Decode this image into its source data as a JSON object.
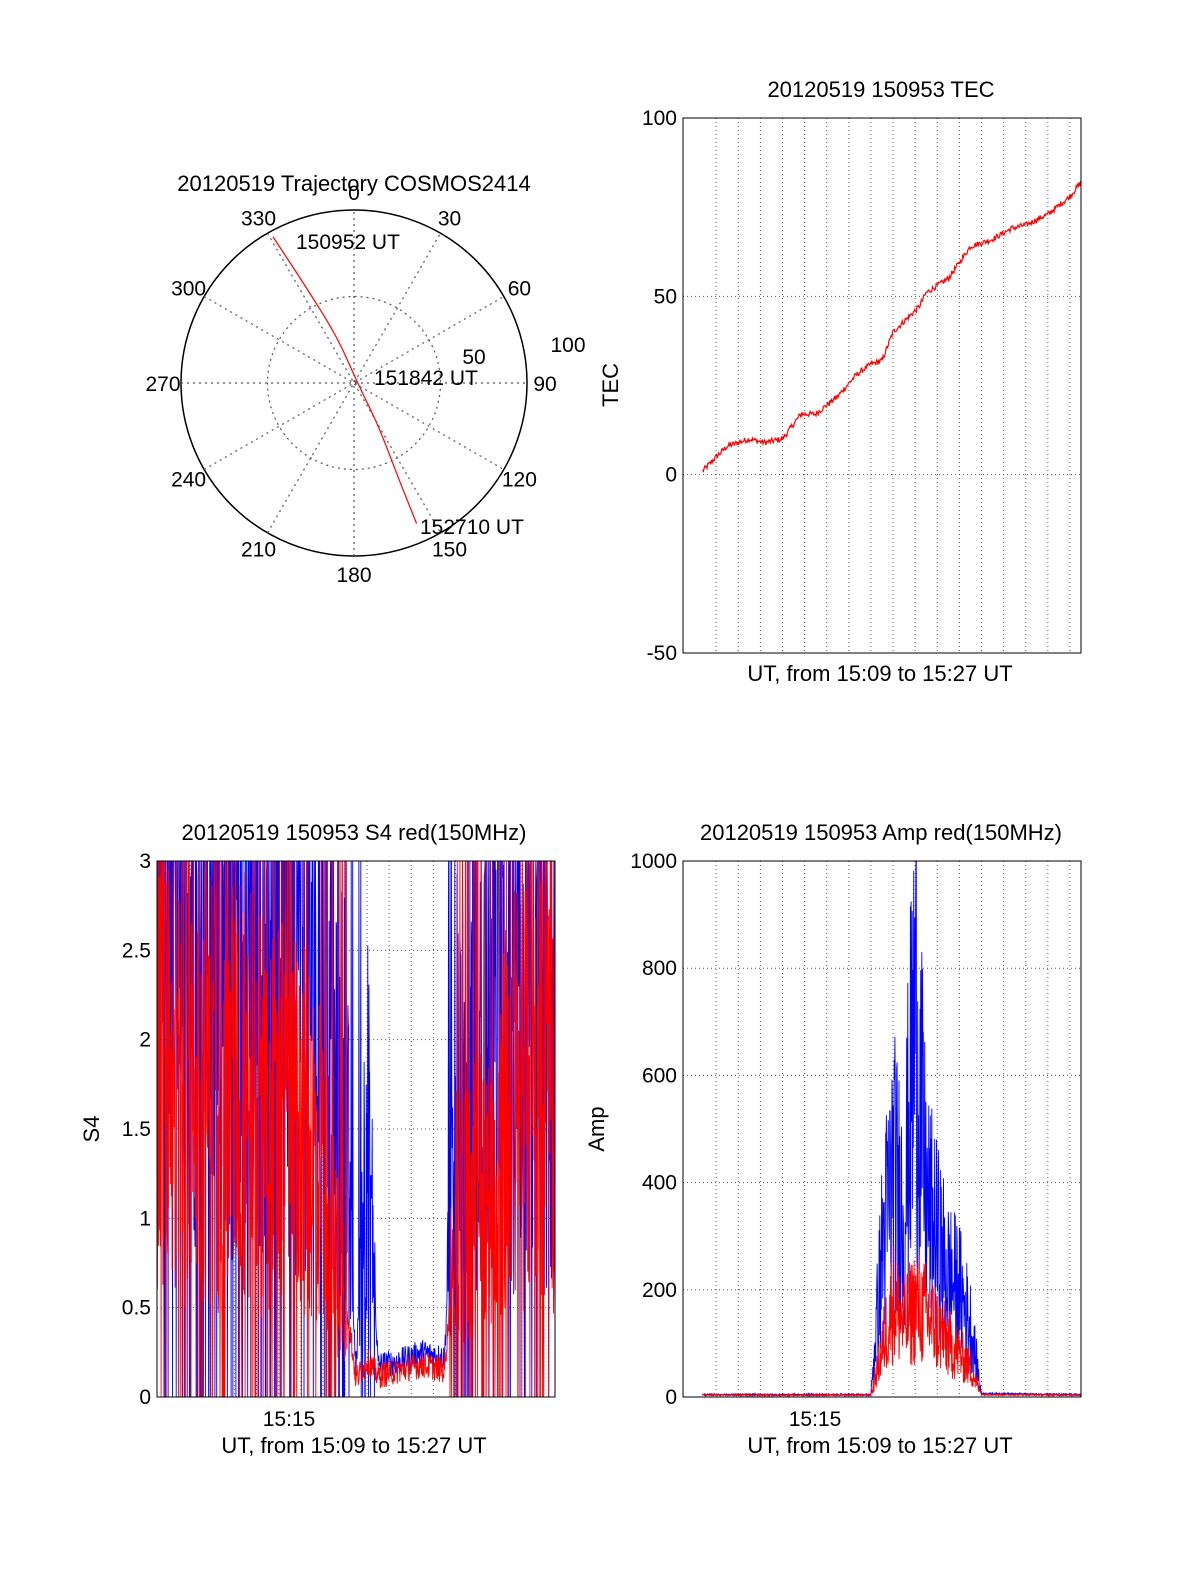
{
  "colors": {
    "red": "#ff0000",
    "blue": "#0000ff",
    "axis": "#000000",
    "grid": "#555555"
  },
  "chart_data": [
    {
      "id": "trajectory",
      "type": "polar",
      "title": "20120519 Trajectory COSMOS2414",
      "azimuth_labels": [
        "0",
        "30",
        "60",
        "90",
        "120",
        "150",
        "180",
        "210",
        "240",
        "270",
        "300",
        "330"
      ],
      "radial_labels": [
        "50",
        "100"
      ],
      "track": [
        {
          "az": 331,
          "el": 3
        },
        {
          "az": 333,
          "el": 30
        },
        {
          "az": 340,
          "el": 64
        },
        {
          "az": 100,
          "el": 88
        },
        {
          "az": 150,
          "el": 65
        },
        {
          "az": 155,
          "el": 35
        },
        {
          "az": 156,
          "el": 10
        }
      ],
      "annotations": [
        "150952 UT",
        "151842 UT",
        "152710 UT"
      ]
    },
    {
      "id": "tec",
      "type": "line",
      "title": "20120519 150953 TEC",
      "xlabel": "UT, from 15:09 to 15:27 UT",
      "ylabel": "TEC",
      "xlim": [
        "15:09",
        "15:27"
      ],
      "ylim": [
        -50,
        100
      ],
      "yticks": [
        "-50",
        "0",
        "50",
        "100"
      ],
      "grid": true,
      "series": [
        {
          "x": [
            "15:09:53",
            "15:10:30",
            "15:11:00",
            "15:12:00",
            "15:12:40",
            "15:13:30",
            "15:14:20",
            "15:15:00",
            "15:16:00",
            "15:16:50",
            "15:17:30",
            "15:18:00",
            "15:18:30",
            "15:19:00",
            "15:19:40",
            "15:20:00",
            "15:21:00",
            "15:22:00",
            "15:23:00",
            "15:23:50",
            "15:24:30",
            "15:25:30",
            "15:26:30",
            "15:27:00"
          ],
          "y": [
            1,
            5,
            8,
            10,
            9,
            10,
            17,
            17,
            22,
            28,
            31,
            32,
            40,
            43,
            47,
            51,
            55,
            64,
            66,
            69,
            70,
            73,
            78,
            82
          ]
        }
      ]
    },
    {
      "id": "s4",
      "type": "line",
      "title": "20120519 150953 S4 red(150MHz)",
      "xlabel": "UT, from 15:09 to 15:27 UT",
      "ylabel": "S4",
      "xlim": [
        "15:09",
        "15:27"
      ],
      "ylim": [
        0,
        3
      ],
      "xtick_labels": [
        "15:15"
      ],
      "yticks": [
        "0",
        "0.5",
        "1",
        "1.5",
        "2",
        "2.5",
        "3"
      ],
      "grid": true,
      "series": [
        {
          "color": "blue",
          "x": [
            "15:09",
            "15:10",
            "15:11",
            "15:12",
            "15:13",
            "15:14",
            "15:15",
            "15:16",
            "15:16:30",
            "15:17",
            "15:17:30",
            "15:18",
            "15:18:30",
            "15:19",
            "15:20",
            "15:21",
            "15:22",
            "15:22:30",
            "15:23",
            "15:24",
            "15:25",
            "15:26",
            "15:27"
          ],
          "y": [
            2.8,
            2.7,
            2.6,
            2.4,
            2.5,
            2.4,
            2.3,
            2.1,
            1.8,
            1.4,
            1.6,
            0.15,
            1.5,
            0.18,
            0.2,
            0.25,
            0.22,
            1.6,
            1.8,
            1.9,
            1.9,
            1.8,
            1.7
          ]
        },
        {
          "color": "red",
          "x": [
            "15:09",
            "15:10",
            "15:11",
            "15:12",
            "15:13",
            "15:14",
            "15:15",
            "15:16",
            "15:16:30",
            "15:17",
            "15:17:30",
            "15:18",
            "15:18:30",
            "15:19",
            "15:20",
            "15:21",
            "15:22",
            "15:22:30",
            "15:23",
            "15:24",
            "15:25",
            "15:26",
            "15:27"
          ],
          "y": [
            1.8,
            1.6,
            1.7,
            1.5,
            1.6,
            1.4,
            1.4,
            1.3,
            1.2,
            0.8,
            0.6,
            0.1,
            0.2,
            0.12,
            0.15,
            0.18,
            0.15,
            0.9,
            1.0,
            1.1,
            1.5,
            1.6,
            1.5
          ]
        }
      ]
    },
    {
      "id": "amp",
      "type": "line",
      "title": "20120519 150953 Amp red(150MHz)",
      "xlabel": "UT, from 15:09 to 15:27 UT",
      "ylabel": "Amp",
      "xlim": [
        "15:09",
        "15:27"
      ],
      "ylim": [
        0,
        1000
      ],
      "xtick_labels": [
        "15:15"
      ],
      "yticks": [
        "0",
        "200",
        "400",
        "600",
        "800",
        "1000"
      ],
      "grid": true,
      "series": [
        {
          "color": "blue",
          "x": [
            "15:09:53",
            "15:17:30",
            "15:18:00",
            "15:18:30",
            "15:19:00",
            "15:19:30",
            "15:20:00",
            "15:20:30",
            "15:21:00",
            "15:21:30",
            "15:22:00",
            "15:22:30",
            "15:27:00"
          ],
          "y": [
            3,
            3,
            300,
            470,
            380,
            800,
            400,
            320,
            250,
            220,
            150,
            5,
            3
          ]
        },
        {
          "color": "red",
          "x": [
            "15:09:53",
            "15:17:30",
            "15:18:00",
            "15:18:30",
            "15:19:00",
            "15:19:30",
            "15:20:00",
            "15:20:30",
            "15:21:00",
            "15:21:30",
            "15:22:00",
            "15:22:30",
            "15:27:00"
          ],
          "y": [
            2,
            2,
            100,
            200,
            150,
            190,
            170,
            140,
            110,
            90,
            60,
            3,
            2
          ]
        }
      ]
    }
  ]
}
